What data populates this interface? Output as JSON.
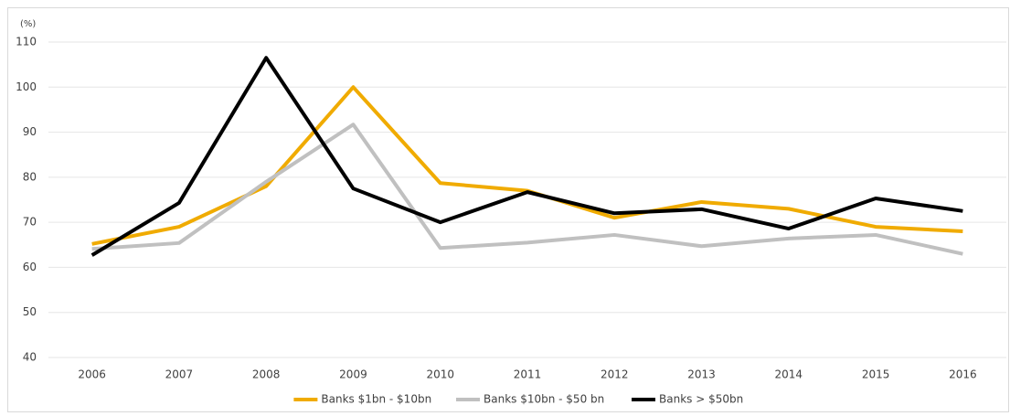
{
  "chart_data": {
    "type": "line",
    "y_label": "(%)",
    "categories": [
      "2006",
      "2007",
      "2008",
      "2009",
      "2010",
      "2011",
      "2012",
      "2013",
      "2014",
      "2015",
      "2016"
    ],
    "series": [
      {
        "name": "Banks $1bn - $10bn",
        "color": "#f0ab00",
        "values": [
          65.2,
          69,
          78,
          100,
          78.7,
          77,
          71,
          74.5,
          73,
          69,
          68
        ]
      },
      {
        "name": "Banks $10bn - $50 bn",
        "color": "#c0c0c0",
        "values": [
          64.1,
          65.4,
          79,
          91.7,
          64.3,
          65.5,
          67.2,
          64.7,
          66.4,
          67.2,
          63
        ]
      },
      {
        "name": "Banks > $50bn",
        "color": "#000000",
        "values": [
          62.7,
          74.3,
          106.5,
          77.5,
          70,
          76.7,
          72,
          72.9,
          68.6,
          75.3,
          72.5
        ]
      }
    ],
    "ylim": [
      40,
      110
    ],
    "yticks": [
      40,
      50,
      60,
      70,
      80,
      90,
      100,
      110
    ],
    "grid": true,
    "legend": "bottom"
  }
}
